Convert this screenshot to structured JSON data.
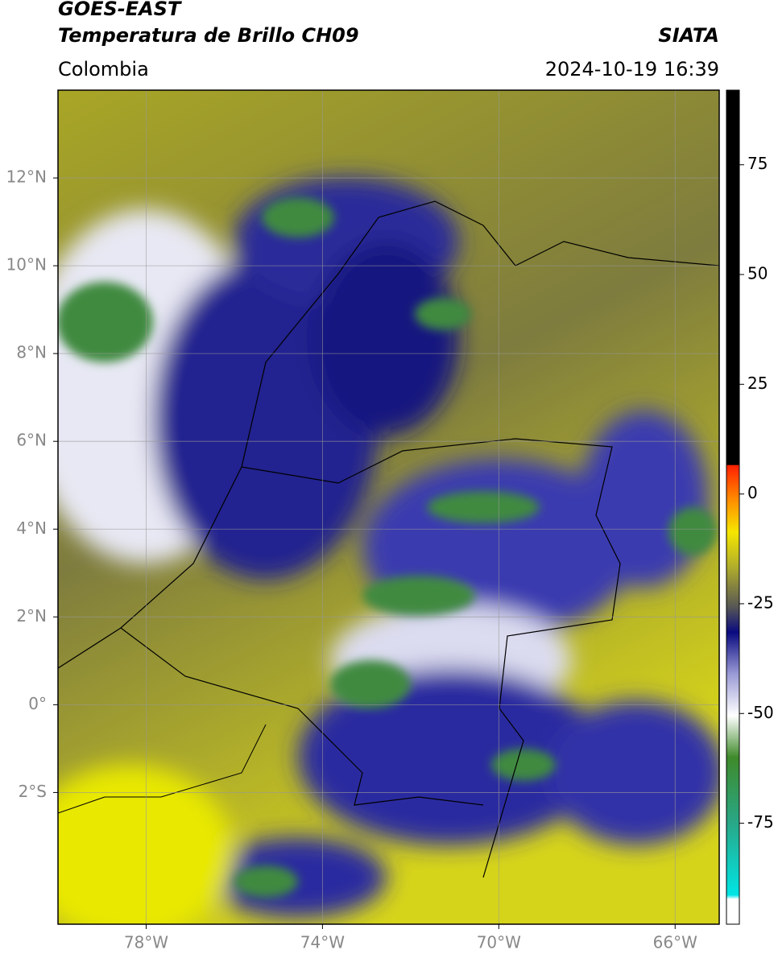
{
  "header": {
    "title_line1": "GOES-EAST",
    "title_line2": "Temperatura de Brillo CH09",
    "region": "Colombia",
    "source": "SIATA",
    "datetime": "2024-10-19 16:39"
  },
  "map": {
    "xlim": [
      -80,
      -65
    ],
    "ylim": [
      -5,
      14
    ],
    "xticks": [
      {
        "value": -78,
        "label": "78°W"
      },
      {
        "value": -74,
        "label": "74°W"
      },
      {
        "value": -70,
        "label": "70°W"
      },
      {
        "value": -66,
        "label": "66°W"
      }
    ],
    "yticks": [
      {
        "value": -2,
        "label": "2°S"
      },
      {
        "value": 0,
        "label": "0°"
      },
      {
        "value": 2,
        "label": "2°N"
      },
      {
        "value": 4,
        "label": "4°N"
      },
      {
        "value": 6,
        "label": "6°N"
      },
      {
        "value": 8,
        "label": "8°N"
      },
      {
        "value": 10,
        "label": "10°N"
      },
      {
        "value": 12,
        "label": "12°N"
      }
    ],
    "grid": true
  },
  "colorbar": {
    "lim": [
      -98,
      92
    ],
    "ticks": [
      -75,
      -50,
      -25,
      0,
      25,
      50,
      75
    ]
  }
}
